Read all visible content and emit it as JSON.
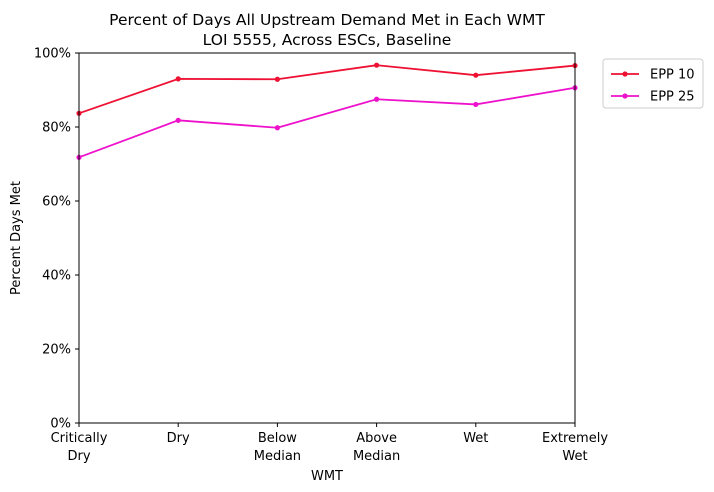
{
  "chart_data": {
    "type": "line",
    "title": "Percent of Days All Upstream Demand Met in Each WMT",
    "subtitle": "LOI 5555, Across ESCs, Baseline",
    "xlabel": "WMT",
    "ylabel": "Percent Days Met",
    "categories": [
      [
        "Critically",
        "Dry"
      ],
      [
        "Dry"
      ],
      [
        "Below",
        "Median"
      ],
      [
        "Above",
        "Median"
      ],
      [
        "Wet"
      ],
      [
        "Extremely",
        "Wet"
      ]
    ],
    "yticks": [
      "0%",
      "20%",
      "40%",
      "60%",
      "80%",
      "100%"
    ],
    "ylim": [
      0,
      100
    ],
    "grid": false,
    "legend_position": "outside-top-right",
    "series": [
      {
        "name": "EPP 10",
        "color": "#ee1133",
        "values": [
          83.7,
          93.0,
          92.9,
          96.7,
          94.0,
          96.6
        ]
      },
      {
        "name": "EPP 25",
        "color": "#ee11cc",
        "values": [
          71.8,
          81.8,
          79.8,
          87.5,
          86.1,
          90.6
        ]
      }
    ]
  }
}
